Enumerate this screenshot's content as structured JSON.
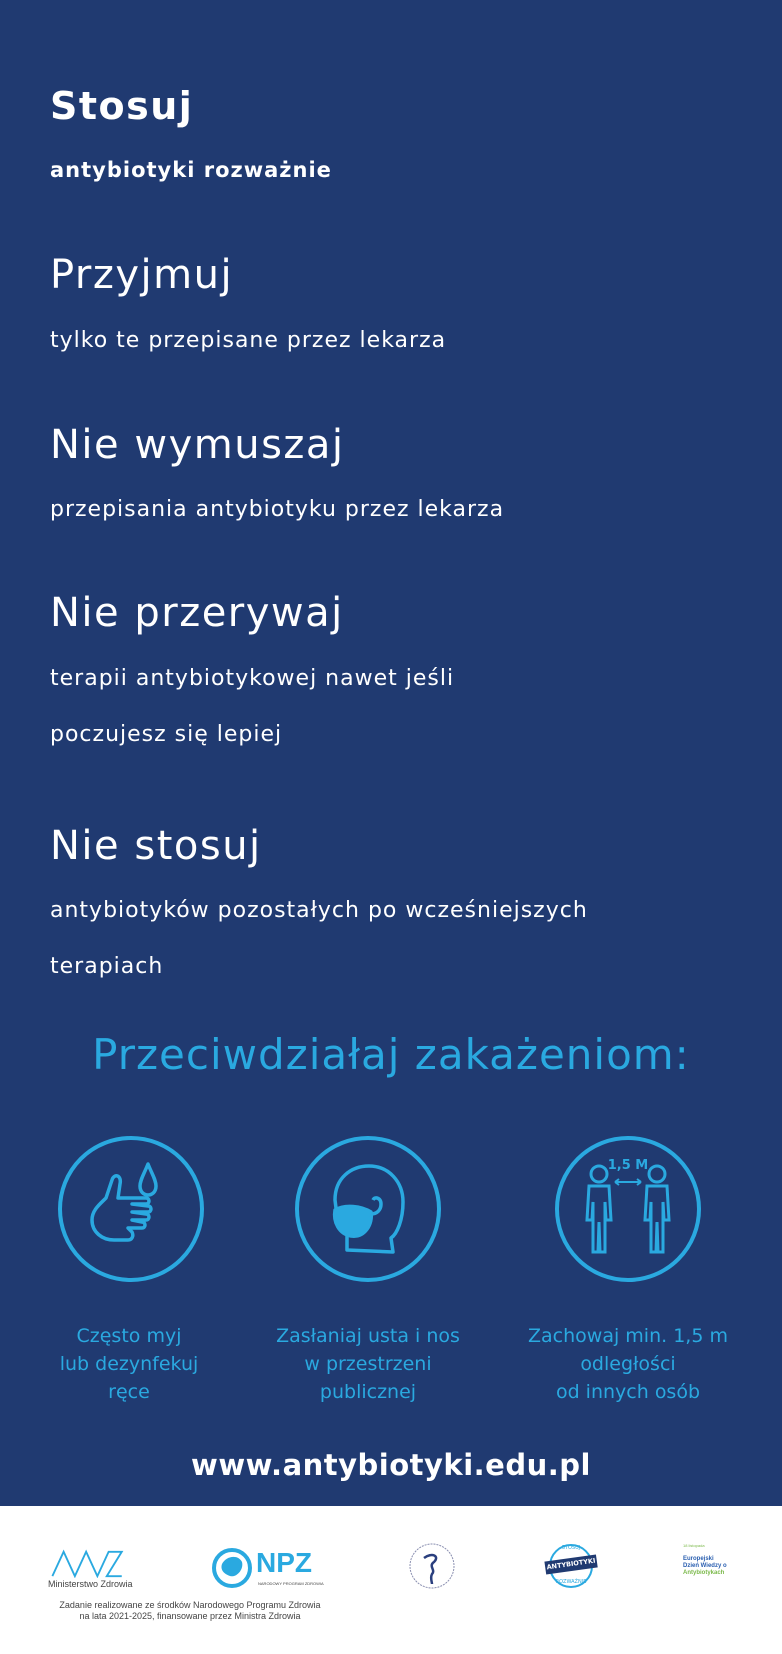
{
  "rules": [
    {
      "title": "Stosuj",
      "lines": [
        "antybiotyki rozważnie"
      ]
    },
    {
      "title": "Przyjmuj",
      "lines": [
        "tylko te przepisane przez lekarza"
      ]
    },
    {
      "title": "Nie wymuszaj",
      "lines": [
        "przepisania antybiotyku przez lekarza"
      ]
    },
    {
      "title": "Nie przerywaj",
      "lines": [
        "terapii antybiotykowej nawet jeśli",
        "poczujesz się lepiej"
      ]
    },
    {
      "title": "Nie stosuj",
      "lines": [
        "antybiotyków pozostałych po wcześniejszych",
        "terapiach"
      ]
    }
  ],
  "prevention": {
    "heading": "Przeciwdziałaj zakażeniom:",
    "items": [
      {
        "icon": "hand-wash-icon",
        "lines": [
          "Często myj",
          "lub dezynfekuj",
          "ręce"
        ]
      },
      {
        "icon": "face-mask-icon",
        "lines": [
          "Zasłaniaj usta i nos",
          "w przestrzeni",
          "publicznej"
        ]
      },
      {
        "icon": "distance-icon",
        "distance_label": "1,5 M",
        "lines": [
          "Zachowaj min. 1,5 m",
          "odległości",
          "od innych osób"
        ]
      }
    ]
  },
  "website": "www.antybiotyki.edu.pl",
  "footer": {
    "mz_label": "Ministerstwo Zdrowia",
    "npz_label": "NPZ",
    "npz_sub": "NARODOWY PROGRAM ZDROWIA",
    "funding": [
      "Zadanie realizowane ze środków Narodowego Programu Zdrowia",
      "na lata 2021-2025, finansowane przez Ministra Zdrowia"
    ],
    "badge_top": "STOSUJ",
    "badge_mid": "ANTYBIOTYKI",
    "badge_bot": "ROZWAŻNIE",
    "eaad_date": "18 listopada",
    "eaad": [
      "Europejski",
      "Dzień Wiedzy o",
      "Antybiotykach"
    ]
  },
  "colors": {
    "background": "#203a71",
    "accent": "#2aa9e0",
    "text": "#ffffff"
  }
}
